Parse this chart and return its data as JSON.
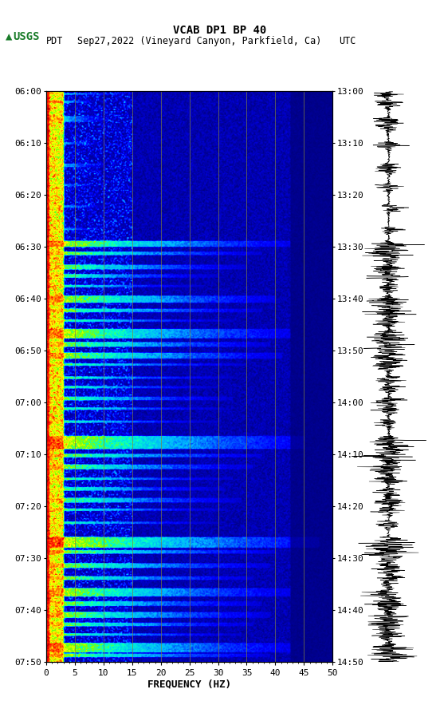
{
  "title_line1": "VCAB DP1 BP 40",
  "title_line2_left": "PDT",
  "title_line2_mid": "Sep27,2022 (Vineyard Canyon, Parkfield, Ca)",
  "title_line2_right": "UTC",
  "xlabel": "FREQUENCY (HZ)",
  "freq_min": 0,
  "freq_max": 50,
  "freq_ticks": [
    0,
    5,
    10,
    15,
    20,
    25,
    30,
    35,
    40,
    45,
    50
  ],
  "time_labels_left": [
    "06:00",
    "06:10",
    "06:20",
    "06:30",
    "06:40",
    "06:50",
    "07:00",
    "07:10",
    "07:20",
    "07:30",
    "07:40",
    "07:50"
  ],
  "time_labels_right": [
    "13:00",
    "13:10",
    "13:20",
    "13:30",
    "13:40",
    "13:50",
    "14:00",
    "14:10",
    "14:20",
    "14:30",
    "14:40",
    "14:50"
  ],
  "usgs_green": "#1a7c2a",
  "background_color": "#ffffff",
  "grid_color": "#808040",
  "title_fontsize": 10,
  "tick_fontsize": 8,
  "label_fontsize": 9,
  "fig_width": 5.52,
  "fig_height": 8.93
}
